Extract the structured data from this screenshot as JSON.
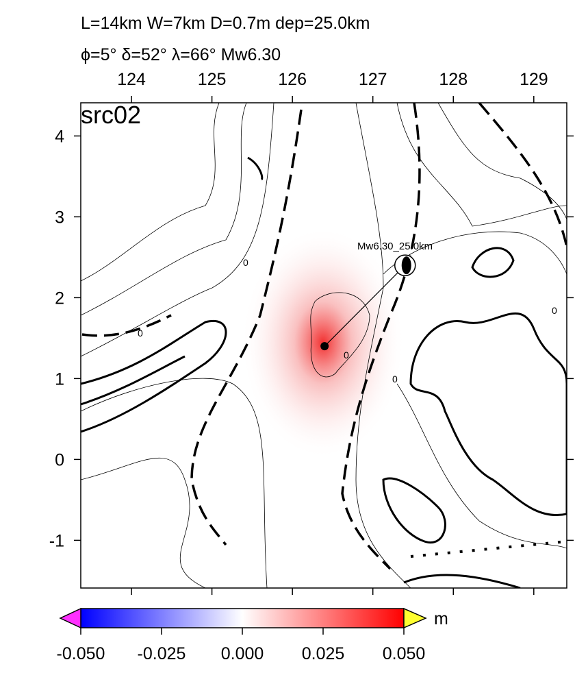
{
  "chart_data": {
    "type": "map",
    "title": "L=14km W=7km D=0.7m dep=25.0km",
    "subtitle": "ϕ=5° δ=52° λ=66° Mw6.30",
    "panel_label": "src02",
    "annotation": "Mw6.30_25.0km",
    "contour_label": "0",
    "xlim": [
      123.37,
      129.41
    ],
    "xticks": [
      124,
      125,
      126,
      127,
      128,
      129
    ],
    "ylim": [
      -1.59,
      4.41
    ],
    "yticks": [
      4,
      3,
      2,
      1,
      0,
      -1
    ],
    "source": {
      "lon": 126.4,
      "lat": 1.4
    },
    "beachball": {
      "lon": 127.4,
      "lat": 2.4
    },
    "colorbar": {
      "clim": [
        -0.05,
        0.05
      ],
      "unit": "m",
      "ticks": [
        {
          "value": -0.05,
          "label": "-0.050"
        },
        {
          "value": -0.025,
          "label": "-0.025"
        },
        {
          "value": 0,
          "label": "0.000"
        },
        {
          "value": 0.025,
          "label": "0.025"
        },
        {
          "value": 0.05,
          "label": "0.050"
        }
      ],
      "colors": [
        "#0000ff",
        "#ffffff",
        "#ff0000"
      ]
    }
  }
}
